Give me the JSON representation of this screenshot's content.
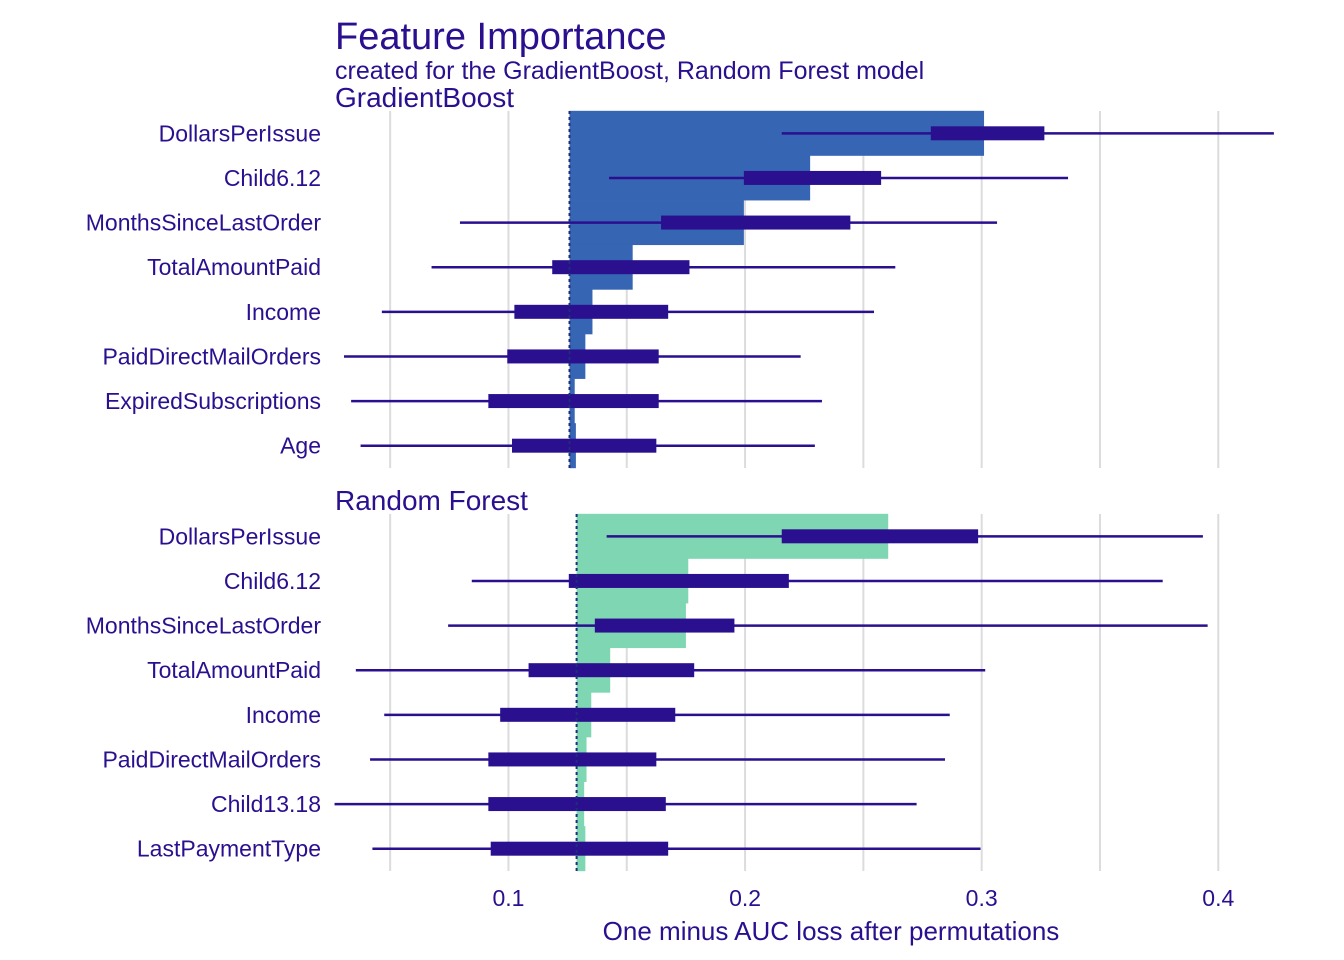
{
  "chart_data": {
    "type": "bar",
    "title": "Feature Importance",
    "subtitle": "created for the GradientBoost, Random Forest model",
    "xlabel": "One minus AUC loss after permutations",
    "xlim": [
      0.025,
      0.432
    ],
    "xticks": [
      0.1,
      0.2,
      0.3,
      0.4
    ],
    "xtick_labels": [
      "0.1",
      "0.2",
      "0.3",
      "0.4"
    ],
    "grid": true,
    "colors": {
      "text": "#2a0f8f",
      "boxplot": "#2a0f8f",
      "grid": "#dcdcdc",
      "baseline": "#1e2e7a"
    },
    "panels": [
      {
        "name": "GradientBoost",
        "bar_color": "#3665b4",
        "baseline": 0.1258,
        "features": [
          {
            "label": "DollarsPerIssue",
            "value": 0.301,
            "min": 0.2155,
            "q1": 0.2785,
            "q3": 0.3265,
            "max": 0.4235
          },
          {
            "label": "Child6.12",
            "value": 0.2275,
            "min": 0.1425,
            "q1": 0.1995,
            "q3": 0.2575,
            "max": 0.3365
          },
          {
            "label": "MonthsSinceLastOrder",
            "value": 0.1995,
            "min": 0.0795,
            "q1": 0.1645,
            "q3": 0.2445,
            "max": 0.3065
          },
          {
            "label": "TotalAmountPaid",
            "value": 0.1525,
            "min": 0.0675,
            "q1": 0.1185,
            "q3": 0.1765,
            "max": 0.2635
          },
          {
            "label": "Income",
            "value": 0.1355,
            "min": 0.0465,
            "q1": 0.1025,
            "q3": 0.1675,
            "max": 0.2545
          },
          {
            "label": "PaidDirectMailOrders",
            "value": 0.1325,
            "min": 0.0305,
            "q1": 0.0995,
            "q3": 0.1635,
            "max": 0.2235
          },
          {
            "label": "ExpiredSubscriptions",
            "value": 0.128,
            "min": 0.0335,
            "q1": 0.0915,
            "q3": 0.1635,
            "max": 0.2325
          },
          {
            "label": "Age",
            "value": 0.1285,
            "min": 0.0375,
            "q1": 0.1015,
            "q3": 0.1625,
            "max": 0.2295
          }
        ]
      },
      {
        "name": "Random Forest",
        "bar_color": "#7fd6b2",
        "baseline": 0.1288,
        "features": [
          {
            "label": "DollarsPerIssue",
            "value": 0.2605,
            "min": 0.1415,
            "q1": 0.2155,
            "q3": 0.2985,
            "max": 0.3935
          },
          {
            "label": "Child6.12",
            "value": 0.176,
            "min": 0.0845,
            "q1": 0.1255,
            "q3": 0.2185,
            "max": 0.3765
          },
          {
            "label": "MonthsSinceLastOrder",
            "value": 0.175,
            "min": 0.0745,
            "q1": 0.1365,
            "q3": 0.1955,
            "max": 0.3955
          },
          {
            "label": "TotalAmountPaid",
            "value": 0.143,
            "min": 0.0355,
            "q1": 0.1085,
            "q3": 0.1785,
            "max": 0.3015
          },
          {
            "label": "Income",
            "value": 0.135,
            "min": 0.0475,
            "q1": 0.0965,
            "q3": 0.1705,
            "max": 0.2865
          },
          {
            "label": "PaidDirectMailOrders",
            "value": 0.133,
            "min": 0.0415,
            "q1": 0.0915,
            "q3": 0.1625,
            "max": 0.2845
          },
          {
            "label": "Child13.18",
            "value": 0.132,
            "min": 0.0265,
            "q1": 0.0915,
            "q3": 0.1665,
            "max": 0.2725
          },
          {
            "label": "LastPaymentType",
            "value": 0.1325,
            "min": 0.0425,
            "q1": 0.0925,
            "q3": 0.1675,
            "max": 0.2995
          }
        ]
      }
    ]
  }
}
